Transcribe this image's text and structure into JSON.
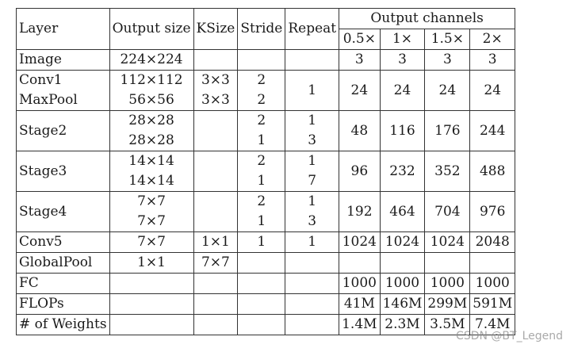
{
  "headers": {
    "layer": "Layer",
    "output_size": "Output size",
    "ksize": "KSize",
    "stride": "Stride",
    "repeat": "Repeat",
    "output_channels": "Output channels",
    "scales": [
      "0.5×",
      "1×",
      "1.5×",
      "2×"
    ]
  },
  "rows": {
    "image": {
      "layer": "Image",
      "output_size": "224×224",
      "channels": [
        "3",
        "3",
        "3",
        "3"
      ]
    },
    "conv1_maxpool": {
      "layers": [
        "Conv1",
        "MaxPool"
      ],
      "output_sizes": [
        "112×112",
        "56×56"
      ],
      "ksizes": [
        "3×3",
        "3×3"
      ],
      "strides": [
        "2",
        "2"
      ],
      "repeat": "1",
      "channels": [
        "24",
        "24",
        "24",
        "24"
      ]
    },
    "stage2": {
      "layer": "Stage2",
      "output_sizes": [
        "28×28",
        "28×28"
      ],
      "strides": [
        "2",
        "1"
      ],
      "repeats": [
        "1",
        "3"
      ],
      "channels": [
        "48",
        "116",
        "176",
        "244"
      ]
    },
    "stage3": {
      "layer": "Stage3",
      "output_sizes": [
        "14×14",
        "14×14"
      ],
      "strides": [
        "2",
        "1"
      ],
      "repeats": [
        "1",
        "7"
      ],
      "channels": [
        "96",
        "232",
        "352",
        "488"
      ]
    },
    "stage4": {
      "layer": "Stage4",
      "output_sizes": [
        "7×7",
        "7×7"
      ],
      "strides": [
        "2",
        "1"
      ],
      "repeats": [
        "1",
        "3"
      ],
      "channels": [
        "192",
        "464",
        "704",
        "976"
      ]
    },
    "conv5": {
      "layer": "Conv5",
      "output_size": "7×7",
      "ksize": "1×1",
      "stride": "1",
      "repeat": "1",
      "channels": [
        "1024",
        "1024",
        "1024",
        "2048"
      ]
    },
    "globalpool": {
      "layer": "GlobalPool",
      "output_size": "1×1",
      "ksize": "7×7"
    },
    "fc": {
      "layer": "FC",
      "channels": [
        "1000",
        "1000",
        "1000",
        "1000"
      ]
    },
    "flops": {
      "layer": "FLOPs",
      "channels": [
        "41M",
        "146M",
        "299M",
        "591M"
      ]
    },
    "weights": {
      "layer": "# of Weights",
      "channels": [
        "1.4M",
        "2.3M",
        "3.5M",
        "7.4M"
      ]
    }
  },
  "watermark": "CSDN @BT_Legend"
}
